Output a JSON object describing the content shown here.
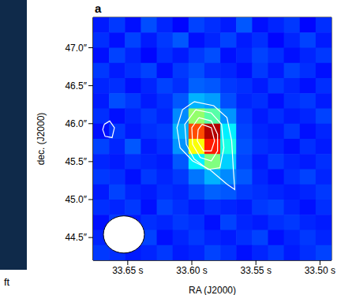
{
  "chart_data": {
    "type": "heatmap",
    "panel_label": "a",
    "annotations": [
      "ft"
    ],
    "x_label": "RA (J2000)",
    "y_label": "dec. (J2000)",
    "xlim": [
      33.677,
      33.491
    ],
    "ylim": [
      44.2,
      47.4
    ],
    "xticks": [
      {
        "value": 33.65,
        "label": "33.65 s"
      },
      {
        "value": 33.6,
        "label": "33.60 s"
      },
      {
        "value": 33.55,
        "label": "33.55 s"
      },
      {
        "value": 33.5,
        "label": "33.50 s"
      }
    ],
    "yticks": [
      {
        "value": 44.5,
        "label": "44.5″"
      },
      {
        "value": 45,
        "label": "45.0″"
      },
      {
        "value": 45.5,
        "label": "45.5″"
      },
      {
        "value": 46,
        "label": "46.0″"
      },
      {
        "value": 46.5,
        "label": "46.5″"
      },
      {
        "value": 47,
        "label": "47.0″"
      }
    ],
    "heatmap": {
      "x": [
        33.6708,
        33.6584,
        33.646,
        33.6336,
        33.6212,
        33.6088,
        33.5964,
        33.584,
        33.5716,
        33.5592,
        33.5468,
        33.5344,
        33.522,
        33.5096,
        33.4972
      ],
      "y": [
        47.3,
        47.1,
        46.9,
        46.7,
        46.5,
        46.3,
        46.1,
        45.9,
        45.7,
        45.5,
        45.3,
        45.1,
        44.9,
        44.7,
        44.5,
        44.3
      ],
      "zlim": [
        0,
        1
      ],
      "values": [
        [
          0.15,
          0.18,
          0.14,
          0.2,
          0.16,
          0.13,
          0.19,
          0.17,
          0.15,
          0.21,
          0.14,
          0.16,
          0.18,
          0.13,
          0.17
        ],
        [
          0.17,
          0.14,
          0.19,
          0.15,
          0.18,
          0.21,
          0.14,
          0.16,
          0.19,
          0.15,
          0.17,
          0.13,
          0.16,
          0.19,
          0.15
        ],
        [
          0.14,
          0.19,
          0.16,
          0.13,
          0.17,
          0.15,
          0.18,
          0.2,
          0.14,
          0.16,
          0.19,
          0.17,
          0.14,
          0.16,
          0.18
        ],
        [
          0.18,
          0.15,
          0.17,
          0.19,
          0.14,
          0.18,
          0.2,
          0.17,
          0.16,
          0.14,
          0.18,
          0.15,
          0.19,
          0.17,
          0.14
        ],
        [
          0.16,
          0.17,
          0.14,
          0.16,
          0.19,
          0.17,
          0.22,
          0.21,
          0.18,
          0.17,
          0.15,
          0.18,
          0.16,
          0.14,
          0.17
        ],
        [
          0.15,
          0.2,
          0.18,
          0.15,
          0.17,
          0.21,
          0.3,
          0.28,
          0.2,
          0.16,
          0.17,
          0.14,
          0.17,
          0.18,
          0.15
        ],
        [
          0.17,
          0.14,
          0.16,
          0.18,
          0.16,
          0.26,
          0.52,
          0.46,
          0.27,
          0.18,
          0.15,
          0.17,
          0.15,
          0.16,
          0.19
        ],
        [
          0.14,
          0.18,
          0.15,
          0.17,
          0.18,
          0.3,
          0.8,
          0.95,
          0.36,
          0.19,
          0.16,
          0.15,
          0.18,
          0.14,
          0.16
        ],
        [
          0.19,
          0.16,
          0.21,
          0.15,
          0.17,
          0.27,
          0.62,
          0.85,
          0.4,
          0.2,
          0.17,
          0.16,
          0.14,
          0.17,
          0.15
        ],
        [
          0.16,
          0.15,
          0.17,
          0.16,
          0.15,
          0.21,
          0.36,
          0.5,
          0.33,
          0.19,
          0.15,
          0.18,
          0.16,
          0.15,
          0.17
        ],
        [
          0.18,
          0.17,
          0.14,
          0.18,
          0.16,
          0.18,
          0.24,
          0.3,
          0.26,
          0.21,
          0.16,
          0.14,
          0.17,
          0.19,
          0.16
        ],
        [
          0.15,
          0.19,
          0.16,
          0.15,
          0.17,
          0.16,
          0.19,
          0.22,
          0.21,
          0.18,
          0.17,
          0.16,
          0.15,
          0.16,
          0.18
        ],
        [
          0.17,
          0.16,
          0.18,
          0.14,
          0.19,
          0.17,
          0.15,
          0.17,
          0.16,
          0.15,
          0.18,
          0.19,
          0.16,
          0.14,
          0.17
        ],
        [
          0.14,
          0.18,
          0.15,
          0.17,
          0.16,
          0.18,
          0.17,
          0.14,
          0.19,
          0.16,
          0.15,
          0.17,
          0.18,
          0.16,
          0.15
        ],
        [
          0.16,
          0.15,
          0.17,
          0.19,
          0.14,
          0.16,
          0.18,
          0.16,
          0.15,
          0.17,
          0.19,
          0.14,
          0.16,
          0.18,
          0.16
        ],
        [
          0.18,
          0.17,
          0.15,
          0.16,
          0.18,
          0.15,
          0.16,
          0.19,
          0.17,
          0.14,
          0.16,
          0.18,
          0.15,
          0.17,
          0.19
        ]
      ]
    },
    "contours": {
      "color": "#ffffff",
      "lines": [
        [
          [
            33.5982,
            46.289
          ],
          [
            33.5829,
            46.237
          ],
          [
            33.5726,
            46.079
          ],
          [
            33.5689,
            45.772
          ],
          [
            33.5677,
            45.421
          ],
          [
            33.5665,
            45.132
          ],
          [
            33.5726,
            45.202
          ],
          [
            33.586,
            45.395
          ],
          [
            33.5994,
            45.509
          ],
          [
            33.6092,
            45.684
          ],
          [
            33.6116,
            45.947
          ],
          [
            33.6073,
            46.184
          ]
        ],
        [
          [
            33.597,
            46.184
          ],
          [
            33.5848,
            46.14
          ],
          [
            33.5768,
            45.991
          ],
          [
            33.575,
            45.684
          ],
          [
            33.578,
            45.421
          ],
          [
            33.5872,
            45.395
          ],
          [
            33.5982,
            45.535
          ],
          [
            33.6043,
            45.728
          ],
          [
            33.6055,
            45.991
          ]
        ],
        [
          [
            33.5945,
            46.079
          ],
          [
            33.5848,
            46.035
          ],
          [
            33.5799,
            45.86
          ],
          [
            33.5799,
            45.64
          ],
          [
            33.5848,
            45.509
          ],
          [
            33.5933,
            45.553
          ],
          [
            33.5994,
            45.728
          ],
          [
            33.6,
            45.947
          ]
        ],
        [
          [
            33.5921,
            45.991
          ],
          [
            33.5848,
            45.947
          ],
          [
            33.5823,
            45.772
          ],
          [
            33.5848,
            45.64
          ],
          [
            33.5909,
            45.64
          ],
          [
            33.5957,
            45.772
          ],
          [
            33.5951,
            45.921
          ]
        ],
        [
          [
            33.6683,
            45.991
          ],
          [
            33.6641,
            46.035
          ],
          [
            33.6604,
            45.947
          ],
          [
            33.6622,
            45.816
          ],
          [
            33.6677,
            45.833
          ],
          [
            33.6695,
            45.921
          ]
        ]
      ]
    },
    "beam": {
      "ra": 33.653,
      "dec": 44.54,
      "width": 0.032,
      "height": 0.49,
      "color": "#ffffff"
    }
  }
}
